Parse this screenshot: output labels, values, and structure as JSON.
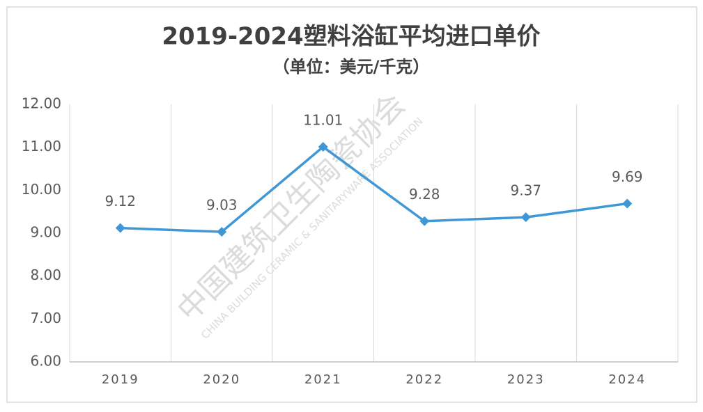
{
  "chart_data": {
    "type": "line",
    "title": "2019-2024塑料浴缸平均进口单价",
    "subtitle": "（单位：美元/千克）",
    "categories": [
      "2019",
      "2020",
      "2021",
      "2022",
      "2023",
      "2024"
    ],
    "series": [
      {
        "name": "平均进口单价",
        "color": "#3f97d6",
        "values": [
          9.12,
          9.03,
          11.01,
          9.28,
          9.37,
          9.69
        ]
      }
    ],
    "ylim": [
      6,
      12
    ],
    "yticks": [
      {
        "value": 6,
        "label": "6.00"
      },
      {
        "value": 7,
        "label": "7.00"
      },
      {
        "value": 8,
        "label": "8.00"
      },
      {
        "value": 9,
        "label": "9.00"
      },
      {
        "value": 10,
        "label": "10.00"
      },
      {
        "value": 11,
        "label": "11.00"
      },
      {
        "value": 12,
        "label": "12.00"
      }
    ],
    "watermark": {
      "text": "中国建筑卫生陶瓷协会",
      "subtext": "CHINA BUILDING CERAMIC & SANITARYWARE ASSOCIATION"
    }
  }
}
